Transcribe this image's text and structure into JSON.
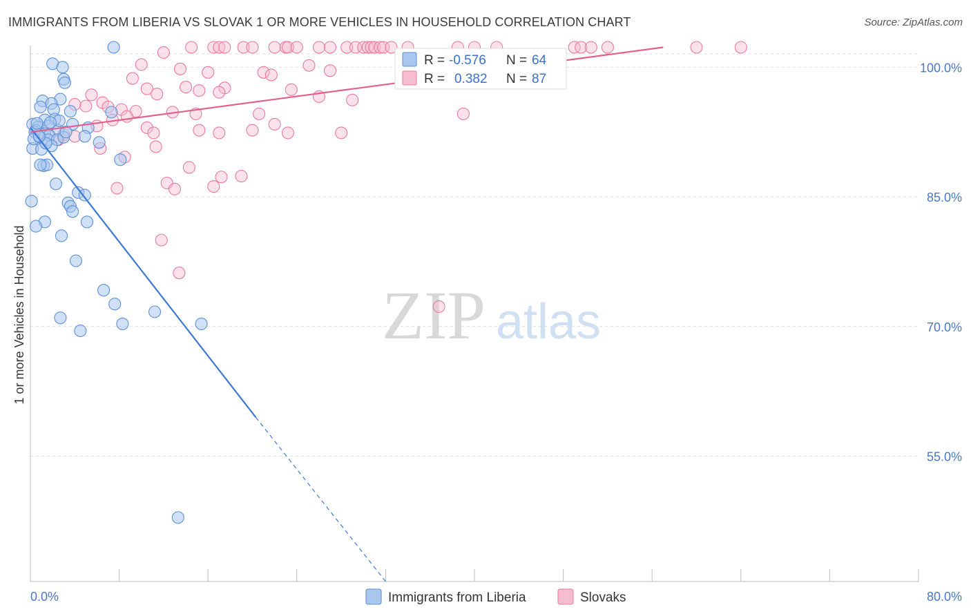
{
  "title": "IMMIGRANTS FROM LIBERIA VS SLOVAK 1 OR MORE VEHICLES IN HOUSEHOLD CORRELATION CHART",
  "source": "Source: ZipAtlas.com",
  "watermark": {
    "zip": "ZIP",
    "atlas": "atlas"
  },
  "colors": {
    "blue_fill": "#a9c6ee",
    "blue_stroke": "#5b8fd6",
    "blue_line": "#3a78d6",
    "pink_fill": "#f6bdd0",
    "pink_stroke": "#e8799d",
    "pink_line": "#e35f8e",
    "tick_text": "#4a78c4",
    "grid": "#dddddd"
  },
  "legend_stats": {
    "row1": {
      "r_label": "R = ",
      "r_value": "-0.576",
      "n_label": "N = ",
      "n_value": "64"
    },
    "row2": {
      "r_label": "R = ",
      "r_value": "0.382",
      "n_label": "N = ",
      "n_value": "87"
    }
  },
  "chart_data": {
    "type": "scatter",
    "xlabel": "",
    "ylabel": "1 or more Vehicles in Household",
    "xlim": [
      0,
      80
    ],
    "ylim": [
      40.5,
      102.5
    ],
    "y_ticks": [
      100,
      85,
      70,
      55
    ],
    "y_tick_labels": [
      "100.0%",
      "85.0%",
      "70.0%",
      "55.0%"
    ],
    "x_tick_labels": [
      "0.0%",
      "80.0%"
    ],
    "x_minor_ticks": [
      8,
      16,
      24,
      32,
      40,
      48,
      56,
      64,
      72,
      80
    ],
    "series": [
      {
        "name": "Immigrants from Liberia",
        "color": "blue",
        "r": -0.576,
        "n": 64,
        "trend": {
          "x0": 0,
          "y0": 93,
          "x1": 20.3,
          "y1": 59.5,
          "dash_to_x": 32,
          "dash_to_y": 40.5
        },
        "points": [
          [
            7.5,
            102.3
          ],
          [
            2.0,
            100.4
          ],
          [
            2.9,
            100.0
          ],
          [
            3.0,
            98.6
          ],
          [
            3.1,
            98.2
          ],
          [
            2.7,
            96.3
          ],
          [
            1.1,
            96.1
          ],
          [
            1.9,
            95.8
          ],
          [
            0.9,
            95.4
          ],
          [
            2.1,
            95.1
          ],
          [
            3.6,
            94.9
          ],
          [
            7.3,
            94.8
          ],
          [
            2.2,
            94.0
          ],
          [
            1.3,
            93.9
          ],
          [
            0.2,
            93.4
          ],
          [
            3.8,
            93.4
          ],
          [
            5.2,
            93.0
          ],
          [
            0.7,
            93.1
          ],
          [
            1.6,
            93.2
          ],
          [
            0.5,
            92.7
          ],
          [
            2.5,
            92.7
          ],
          [
            0.4,
            92.5
          ],
          [
            1.3,
            92.3
          ],
          [
            1.7,
            92.1
          ],
          [
            0.8,
            91.9
          ],
          [
            1.6,
            91.6
          ],
          [
            6.2,
            91.3
          ],
          [
            0.2,
            90.6
          ],
          [
            8.1,
            89.3
          ],
          [
            1.2,
            88.6
          ],
          [
            1.5,
            88.7
          ],
          [
            0.9,
            88.7
          ],
          [
            2.3,
            86.5
          ],
          [
            4.3,
            85.5
          ],
          [
            4.9,
            85.2
          ],
          [
            0.1,
            84.5
          ],
          [
            3.4,
            84.3
          ],
          [
            3.6,
            83.9
          ],
          [
            3.8,
            83.3
          ],
          [
            1.3,
            82.1
          ],
          [
            5.1,
            82.1
          ],
          [
            0.5,
            81.6
          ],
          [
            2.8,
            80.5
          ],
          [
            4.1,
            77.6
          ],
          [
            6.6,
            74.2
          ],
          [
            7.6,
            72.6
          ],
          [
            11.2,
            71.7
          ],
          [
            2.7,
            71.0
          ],
          [
            8.3,
            70.3
          ],
          [
            15.4,
            70.3
          ],
          [
            4.5,
            69.5
          ],
          [
            13.3,
            47.9
          ],
          [
            2.4,
            91.6
          ],
          [
            3.0,
            91.9
          ],
          [
            4.9,
            92.0
          ],
          [
            1.0,
            90.5
          ],
          [
            0.3,
            91.7
          ],
          [
            1.9,
            90.9
          ],
          [
            0.6,
            93.5
          ],
          [
            2.6,
            93.8
          ],
          [
            1.4,
            91.2
          ],
          [
            3.2,
            92.5
          ],
          [
            0.8,
            92.0
          ],
          [
            1.8,
            93.6
          ]
        ]
      },
      {
        "name": "Slovaks",
        "color": "pink",
        "r": 0.382,
        "n": 87,
        "trend": {
          "x0": 0,
          "y0": 92.5,
          "x1": 57,
          "y1": 102.3
        },
        "points": [
          [
            14.5,
            102.3
          ],
          [
            16.5,
            102.3
          ],
          [
            17.0,
            102.3
          ],
          [
            17.5,
            102.3
          ],
          [
            19.2,
            102.3
          ],
          [
            20.0,
            102.3
          ],
          [
            22.0,
            102.3
          ],
          [
            23.0,
            102.3
          ],
          [
            23.2,
            102.3
          ],
          [
            24.0,
            102.3
          ],
          [
            26.0,
            102.3
          ],
          [
            27.0,
            102.3
          ],
          [
            28.5,
            102.3
          ],
          [
            29.3,
            102.3
          ],
          [
            30.0,
            102.3
          ],
          [
            30.4,
            102.3
          ],
          [
            30.7,
            102.3
          ],
          [
            31.0,
            102.3
          ],
          [
            31.5,
            102.3
          ],
          [
            31.8,
            102.3
          ],
          [
            32.5,
            102.3
          ],
          [
            34.0,
            102.3
          ],
          [
            38.5,
            102.3
          ],
          [
            40.0,
            102.3
          ],
          [
            42.0,
            102.3
          ],
          [
            49.0,
            102.3
          ],
          [
            49.6,
            102.3
          ],
          [
            50.5,
            102.3
          ],
          [
            52.0,
            102.3
          ],
          [
            60.0,
            102.3
          ],
          [
            64.0,
            102.3
          ],
          [
            12.0,
            101.7
          ],
          [
            10.0,
            100.3
          ],
          [
            25.1,
            100.2
          ],
          [
            13.5,
            99.8
          ],
          [
            16.0,
            99.4
          ],
          [
            21.0,
            99.4
          ],
          [
            27.0,
            99.6
          ],
          [
            21.7,
            99.1
          ],
          [
            9.2,
            98.7
          ],
          [
            10.5,
            97.5
          ],
          [
            14.0,
            97.7
          ],
          [
            17.5,
            97.6
          ],
          [
            15.2,
            97.3
          ],
          [
            17.0,
            97.1
          ],
          [
            23.5,
            97.4
          ],
          [
            11.4,
            96.9
          ],
          [
            5.5,
            96.8
          ],
          [
            26.0,
            96.6
          ],
          [
            29.0,
            96.2
          ],
          [
            6.5,
            95.9
          ],
          [
            4.0,
            95.7
          ],
          [
            5.0,
            95.5
          ],
          [
            7.0,
            95.4
          ],
          [
            8.2,
            95.1
          ],
          [
            9.5,
            94.9
          ],
          [
            12.8,
            94.8
          ],
          [
            14.9,
            94.6
          ],
          [
            20.6,
            94.6
          ],
          [
            8.7,
            94.3
          ],
          [
            7.4,
            93.9
          ],
          [
            22.0,
            93.4
          ],
          [
            6.0,
            93.2
          ],
          [
            10.5,
            93.0
          ],
          [
            15.2,
            92.7
          ],
          [
            20.0,
            92.7
          ],
          [
            23.2,
            92.4
          ],
          [
            11.1,
            92.4
          ],
          [
            28.0,
            92.4
          ],
          [
            17.0,
            92.4
          ],
          [
            3.0,
            92.2
          ],
          [
            4.0,
            92.0
          ],
          [
            2.5,
            91.6
          ],
          [
            6.3,
            90.6
          ],
          [
            11.3,
            90.8
          ],
          [
            8.5,
            89.6
          ],
          [
            14.3,
            88.4
          ],
          [
            19.0,
            87.4
          ],
          [
            17.2,
            87.3
          ],
          [
            12.3,
            86.6
          ],
          [
            16.5,
            86.2
          ],
          [
            7.8,
            86.0
          ],
          [
            13.0,
            85.9
          ],
          [
            11.8,
            80.0
          ],
          [
            13.4,
            76.2
          ],
          [
            36.8,
            72.3
          ],
          [
            39.0,
            94.6
          ]
        ]
      }
    ]
  },
  "bottom_legend": [
    "Immigrants from Liberia",
    "Slovaks"
  ]
}
